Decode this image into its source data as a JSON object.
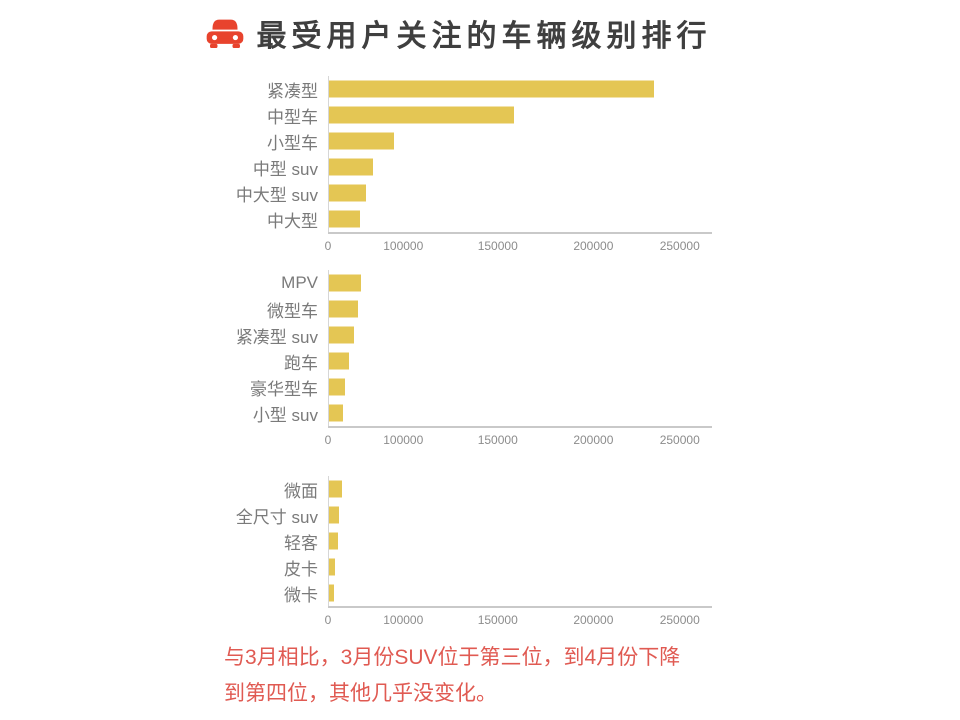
{
  "header": {
    "title": "最受用户关注的车辆级别排行",
    "icon": "car-icon",
    "icon_color": "#e8432d",
    "title_color": "#3f3f3f"
  },
  "colors": {
    "bar": "#e4c654",
    "axis_line": "#c9c9c9",
    "origin_line": "#d6d6d6",
    "category_label": "#7a7a7a",
    "tick_label": "#8c8c8c",
    "annotation_text": "#e05a52"
  },
  "chart_data": [
    {
      "type": "bar",
      "orientation": "horizontal",
      "title": "",
      "categories": [
        "紧凑型",
        "中型车",
        "小型车",
        "中型 suv",
        "中大型 suv",
        "中大型"
      ],
      "values": [
        235000,
        158000,
        86000,
        59000,
        49000,
        41000
      ],
      "x_tick_labels": [
        "0",
        "100000",
        "150000",
        "200000",
        "250000"
      ],
      "x_tick_values": [
        0,
        100000,
        150000,
        200000,
        250000
      ],
      "xlim": [
        0,
        267000
      ],
      "grid": false,
      "legend": "none",
      "bar_color": "#e4c654"
    },
    {
      "type": "bar",
      "orientation": "horizontal",
      "title": "",
      "categories": [
        "MPV",
        "微型车",
        "紧凑型 suv",
        "跑车",
        "豪华型车",
        "小型 suv"
      ],
      "values": [
        43000,
        38000,
        33000,
        27000,
        21000,
        18000
      ],
      "x_tick_labels": [
        "0",
        "100000",
        "150000",
        "200000",
        "250000"
      ],
      "x_tick_values": [
        0,
        100000,
        150000,
        200000,
        250000
      ],
      "xlim": [
        0,
        267000
      ],
      "grid": false,
      "legend": "none",
      "bar_color": "#e4c654"
    },
    {
      "type": "bar",
      "orientation": "horizontal",
      "title": "",
      "categories": [
        "微面",
        "全尺寸 suv",
        "轻客",
        "皮卡",
        "微卡"
      ],
      "values": [
        17000,
        13000,
        12000,
        8000,
        7000
      ],
      "x_tick_labels": [
        "0",
        "100000",
        "150000",
        "200000",
        "250000"
      ],
      "x_tick_values": [
        0,
        100000,
        150000,
        200000,
        250000
      ],
      "xlim": [
        0,
        267000
      ],
      "grid": false,
      "legend": "none",
      "bar_color": "#e4c654"
    }
  ],
  "annotation": {
    "text": "与3月相比，3月份SUV位于第三位，到4月份下降到第四位，其他几乎没变化。",
    "lines": [
      "与3月相比，3月份SUV位于第三位，到4月份下降",
      "到第四位，其他几乎没变化。"
    ]
  }
}
